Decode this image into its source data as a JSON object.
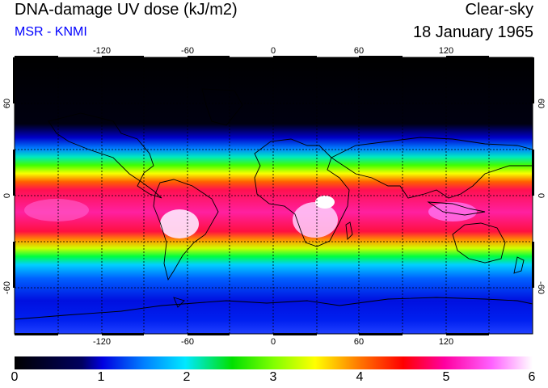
{
  "header": {
    "title": "DNA-damage UV dose (kJ/m2)",
    "source": "MSR - KNMI",
    "sky_condition": "Clear-sky",
    "date": "18 January 1965"
  },
  "map": {
    "projection": "equirectangular",
    "lon_range": [
      -180,
      180
    ],
    "lat_range": [
      -90,
      90
    ],
    "lon_ticks": [
      "-120",
      "-60",
      "0",
      "60",
      "120"
    ],
    "lat_ticks": [
      "60",
      "0",
      "-60"
    ],
    "gridlines": "dashed every 30 degrees"
  },
  "colorbar": {
    "min": 0,
    "max": 6,
    "unit": "kJ/m2",
    "labels": [
      "0",
      "1",
      "2",
      "3",
      "4",
      "5",
      "6"
    ],
    "colors": [
      "#000000",
      "#0000e0",
      "#00e0ff",
      "#00e000",
      "#ffff00",
      "#ff0000",
      "#ff00ff",
      "#ffffff"
    ]
  }
}
